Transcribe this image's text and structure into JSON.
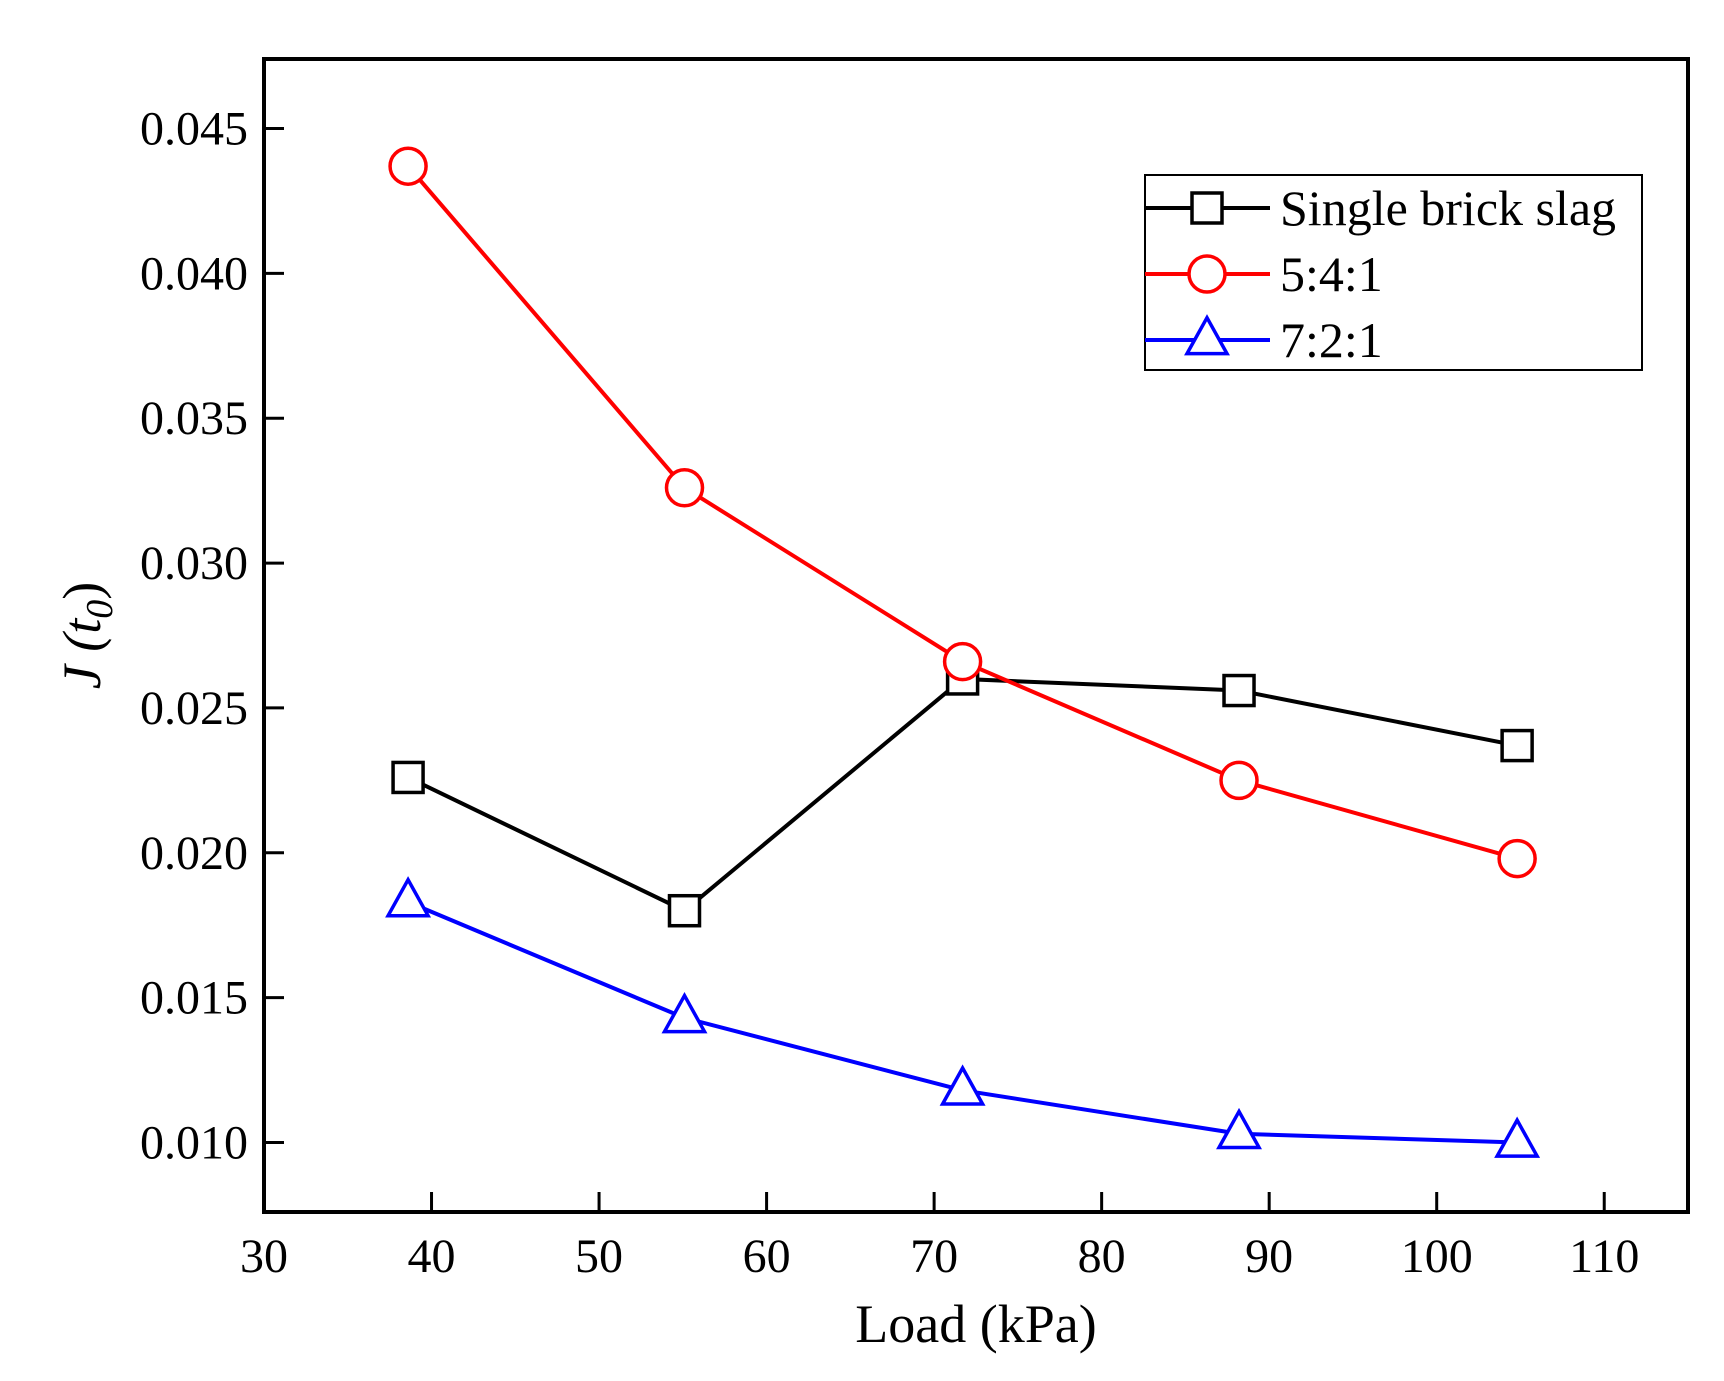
{
  "chart_data": {
    "type": "line",
    "xlabel": "Load (kPa)",
    "ylabel": "J (t0)",
    "ylabel_parts": {
      "main": "J (",
      "var": "t",
      "sub": "0",
      "close": ")"
    },
    "xlim": [
      30,
      115
    ],
    "ylim": [
      0.0076,
      0.0474
    ],
    "xticks": [
      30,
      40,
      50,
      60,
      70,
      80,
      90,
      100,
      110
    ],
    "yticks": [
      0.01,
      0.015,
      0.02,
      0.025,
      0.03,
      0.035,
      0.04,
      0.045
    ],
    "xtick_labels": [
      "30",
      "40",
      "50",
      "60",
      "70",
      "80",
      "90",
      "100",
      "110"
    ],
    "ytick_labels": [
      "0.010",
      "0.015",
      "0.020",
      "0.025",
      "0.030",
      "0.035",
      "0.040",
      "0.045"
    ],
    "grid": false,
    "legend_position": "top-right",
    "x": [
      38.6,
      55.1,
      71.7,
      88.2,
      104.8
    ],
    "series": [
      {
        "name": "Single brick slag",
        "color": "#000000",
        "marker": "square",
        "values": [
          0.0226,
          0.018,
          0.026,
          0.0256,
          0.0237
        ]
      },
      {
        "name": "5:4:1",
        "color": "#ff0000",
        "marker": "circle",
        "values": [
          0.0437,
          0.0326,
          0.0266,
          0.0225,
          0.0198
        ]
      },
      {
        "name": "7:2:1",
        "color": "#0000ff",
        "marker": "triangle",
        "values": [
          0.0183,
          0.0143,
          0.0118,
          0.0103,
          0.01
        ]
      }
    ]
  }
}
